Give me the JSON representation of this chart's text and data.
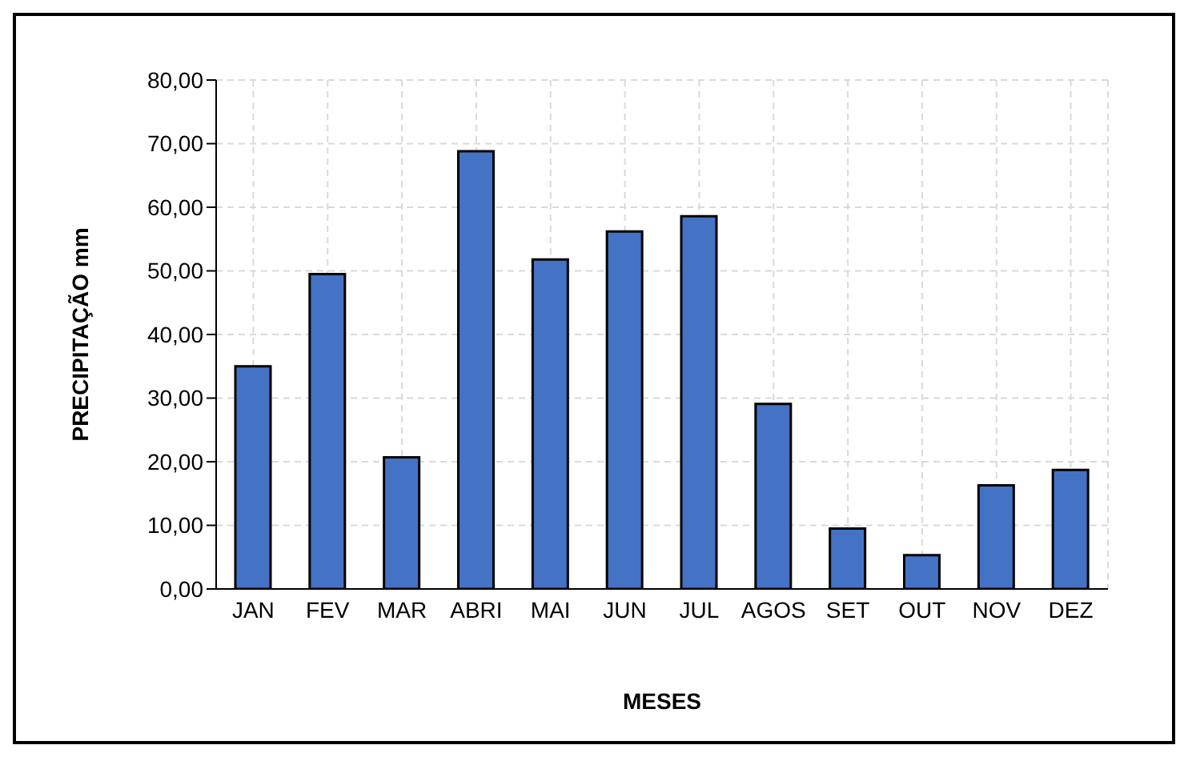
{
  "chart_data": {
    "type": "bar",
    "xlabel": "MESES",
    "ylabel": "PRECIPITAÇÃO mm",
    "categories": [
      "JAN",
      "FEV",
      "MAR",
      "ABRI",
      "MAI",
      "JUN",
      "JUL",
      "AGOS",
      "SET",
      "OUT",
      "NOV",
      "DEZ"
    ],
    "values": [
      35,
      49.5,
      20.7,
      68.8,
      51.8,
      56.2,
      58.6,
      29.1,
      9.5,
      5.3,
      16.3,
      18.7
    ],
    "color": "#4472c4",
    "ylim": [
      0,
      80
    ],
    "yticks": [
      {
        "value": 0,
        "label": "0,00"
      },
      {
        "value": 10,
        "label": "10,00"
      },
      {
        "value": 20,
        "label": "20,00"
      },
      {
        "value": 30,
        "label": "30,00"
      },
      {
        "value": 40,
        "label": "40,00"
      },
      {
        "value": 50,
        "label": "50,00"
      },
      {
        "value": 60,
        "label": "60,00"
      },
      {
        "value": 70,
        "label": "70,00"
      },
      {
        "value": 80,
        "label": "80,00"
      }
    ],
    "grid": true
  }
}
